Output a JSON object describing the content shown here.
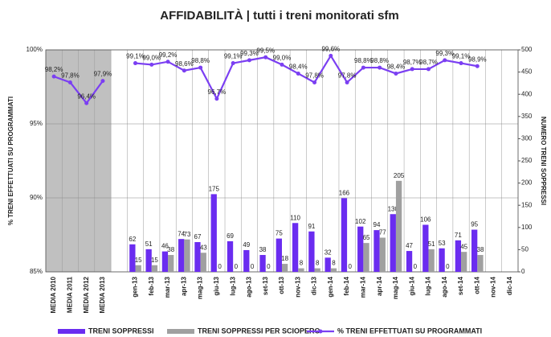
{
  "chart_data": {
    "type": "bar-line",
    "title": "AFFIDABILITÀ | tutti i treni monitorati sfm",
    "y_label": "% TRENI EFFETTUATI SU PROGRAMMATI",
    "y2_label": "NUMERO TRENI SOPPRESSI",
    "categories": [
      "MEDIA 2010",
      "MEDIA 2011",
      "MEDIA 2012",
      "MEDIA 2013",
      null,
      "gen-13",
      "feb-13",
      "mar-13",
      "apr-13",
      "mag-13",
      "giu-13",
      "lug-13",
      "ago-13",
      "set-13",
      "ott-13",
      "nov-13",
      "dic-13",
      "gen-14",
      "feb-14",
      "mar-14",
      "apr-14",
      "mag-14",
      "giu-14",
      "lug-14",
      "ago-14",
      "set-14",
      "ott-14",
      "nov-14",
      "dic-14"
    ],
    "ylim": [
      85,
      100
    ],
    "yticks": [
      {
        "value": 85,
        "label": "85%"
      },
      {
        "value": 90,
        "label": "90%"
      },
      {
        "value": 95,
        "label": "95%"
      },
      {
        "value": 100,
        "label": "100%"
      }
    ],
    "y2lim": [
      0,
      500
    ],
    "y2ticks": [
      0,
      50,
      100,
      150,
      200,
      250,
      300,
      350,
      400,
      450,
      500
    ],
    "grid": true,
    "legend": "bottom",
    "series": [
      {
        "name": "TRENI SOPPRESSI",
        "color": "#6a2cf0",
        "axis": "y2",
        "kind": "bar",
        "values": [
          null,
          null,
          null,
          null,
          null,
          62,
          51,
          46,
          74,
          67,
          175,
          69,
          49,
          38,
          75,
          110,
          91,
          32,
          166,
          102,
          94,
          130,
          47,
          106,
          53,
          71,
          95,
          null,
          null
        ]
      },
      {
        "name": "TRENI SOPPRESSI PER SCIOPERO",
        "color": "#a0a0a0",
        "axis": "y2",
        "kind": "bar",
        "values": [
          null,
          null,
          null,
          null,
          null,
          15,
          15,
          38,
          73,
          43,
          0,
          0,
          0,
          0,
          18,
          8,
          8,
          8,
          0,
          65,
          77,
          205,
          0,
          51,
          0,
          45,
          38,
          null,
          null
        ]
      },
      {
        "name": "% TRENI EFFETTUATI SU PROGRAMMATI",
        "color": "#7b3ff2",
        "kind": "line",
        "values": [
          98.2,
          97.8,
          96.4,
          97.9,
          null,
          99.1,
          99.0,
          99.2,
          98.6,
          98.8,
          96.7,
          99.1,
          99.3,
          99.5,
          99.0,
          98.4,
          97.8,
          99.6,
          97.8,
          98.8,
          98.8,
          98.4,
          98.7,
          98.7,
          99.3,
          99.1,
          98.9,
          null,
          null
        ],
        "value_labels": [
          "98,2%",
          "97,8%",
          "96,4%",
          "97,9%",
          null,
          "99,1%",
          "99,0%",
          "99,2%",
          "98,6%",
          "98,8%",
          "96,7%",
          "99,1%",
          "99,3%",
          "99,5%",
          "99,0%",
          "98,4%",
          "97,8%",
          "99,6%",
          "97,8%",
          "98,8%",
          "98,8%",
          "98,4%",
          "98,7%",
          "98,7%",
          "99,3%",
          "99,1%",
          "98,9%",
          null,
          null
        ]
      }
    ]
  }
}
